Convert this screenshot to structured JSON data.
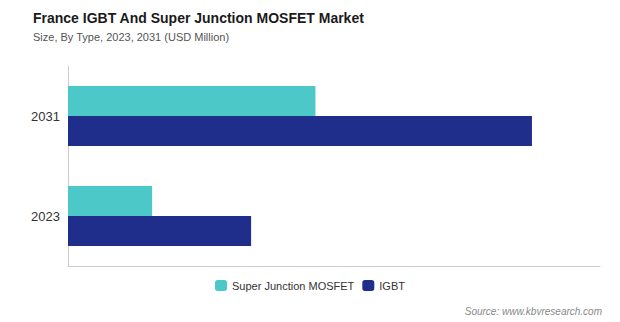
{
  "chart_data": {
    "type": "bar",
    "orientation": "horizontal",
    "title": "France IGBT And Super Junction MOSFET Market",
    "subtitle": "Size, By Type, 2023, 2031 (USD Million)",
    "annotations": [
      "Source: www.kbvresearch.com"
    ],
    "categories": [
      "2031",
      "2023"
    ],
    "series": [
      {
        "name": "Super Junction MOSFET",
        "color": "#4DC8C8",
        "values": [
          200,
          68
        ]
      },
      {
        "name": "IGBT",
        "color": "#1F2E8A",
        "values": [
          375,
          148
        ]
      }
    ],
    "xlim": [
      0,
      430
    ],
    "grid": false,
    "legend": "bottom",
    "tick_labels": "y"
  }
}
